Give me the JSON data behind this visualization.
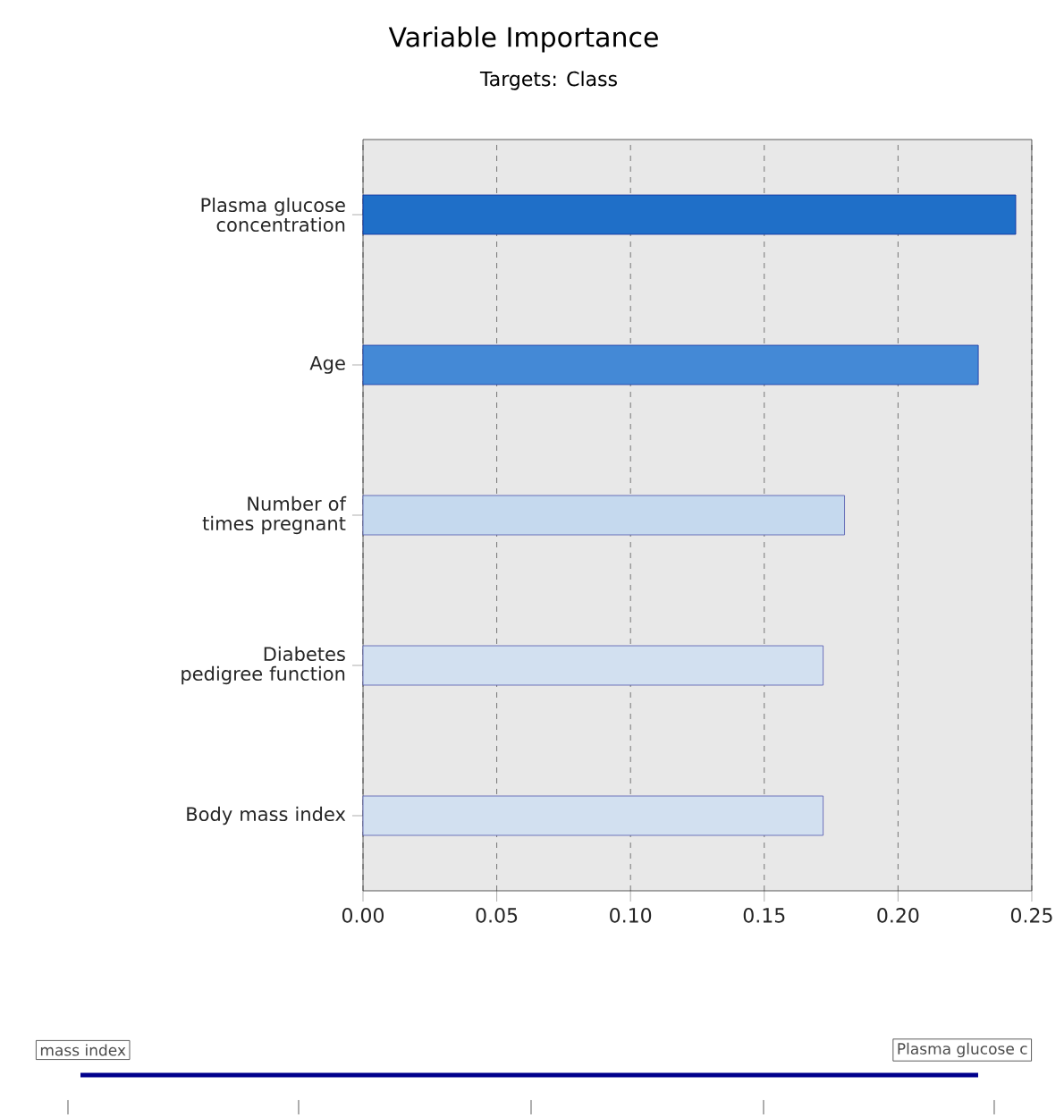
{
  "chart_data": {
    "type": "bar",
    "orientation": "horizontal",
    "title": "Variable Importance",
    "subtitle": "Targets: Class",
    "categories": [
      "Plasma glucose concentration",
      "Age",
      "Number of times pregnant",
      "Diabetes pedigree function",
      "Body mass index"
    ],
    "values": [
      0.244,
      0.23,
      0.18,
      0.172,
      0.172
    ],
    "colors": [
      "#1f6fc8",
      "#4489d6",
      "#c5d9ee",
      "#d2e0f0",
      "#d2e0f0"
    ],
    "xlim": [
      0,
      0.25
    ],
    "xticks": [
      {
        "value": 0,
        "label": "0.00"
      },
      {
        "value": 0.05,
        "label": "0.05"
      },
      {
        "value": 0.1,
        "label": "0.10"
      },
      {
        "value": 0.15,
        "label": "0.15"
      },
      {
        "value": 0.2,
        "label": "0.20"
      },
      {
        "value": 0.25,
        "label": "0.25"
      }
    ],
    "grid": "x",
    "annotations": [
      "mass index",
      "Plasma glucose c"
    ]
  }
}
